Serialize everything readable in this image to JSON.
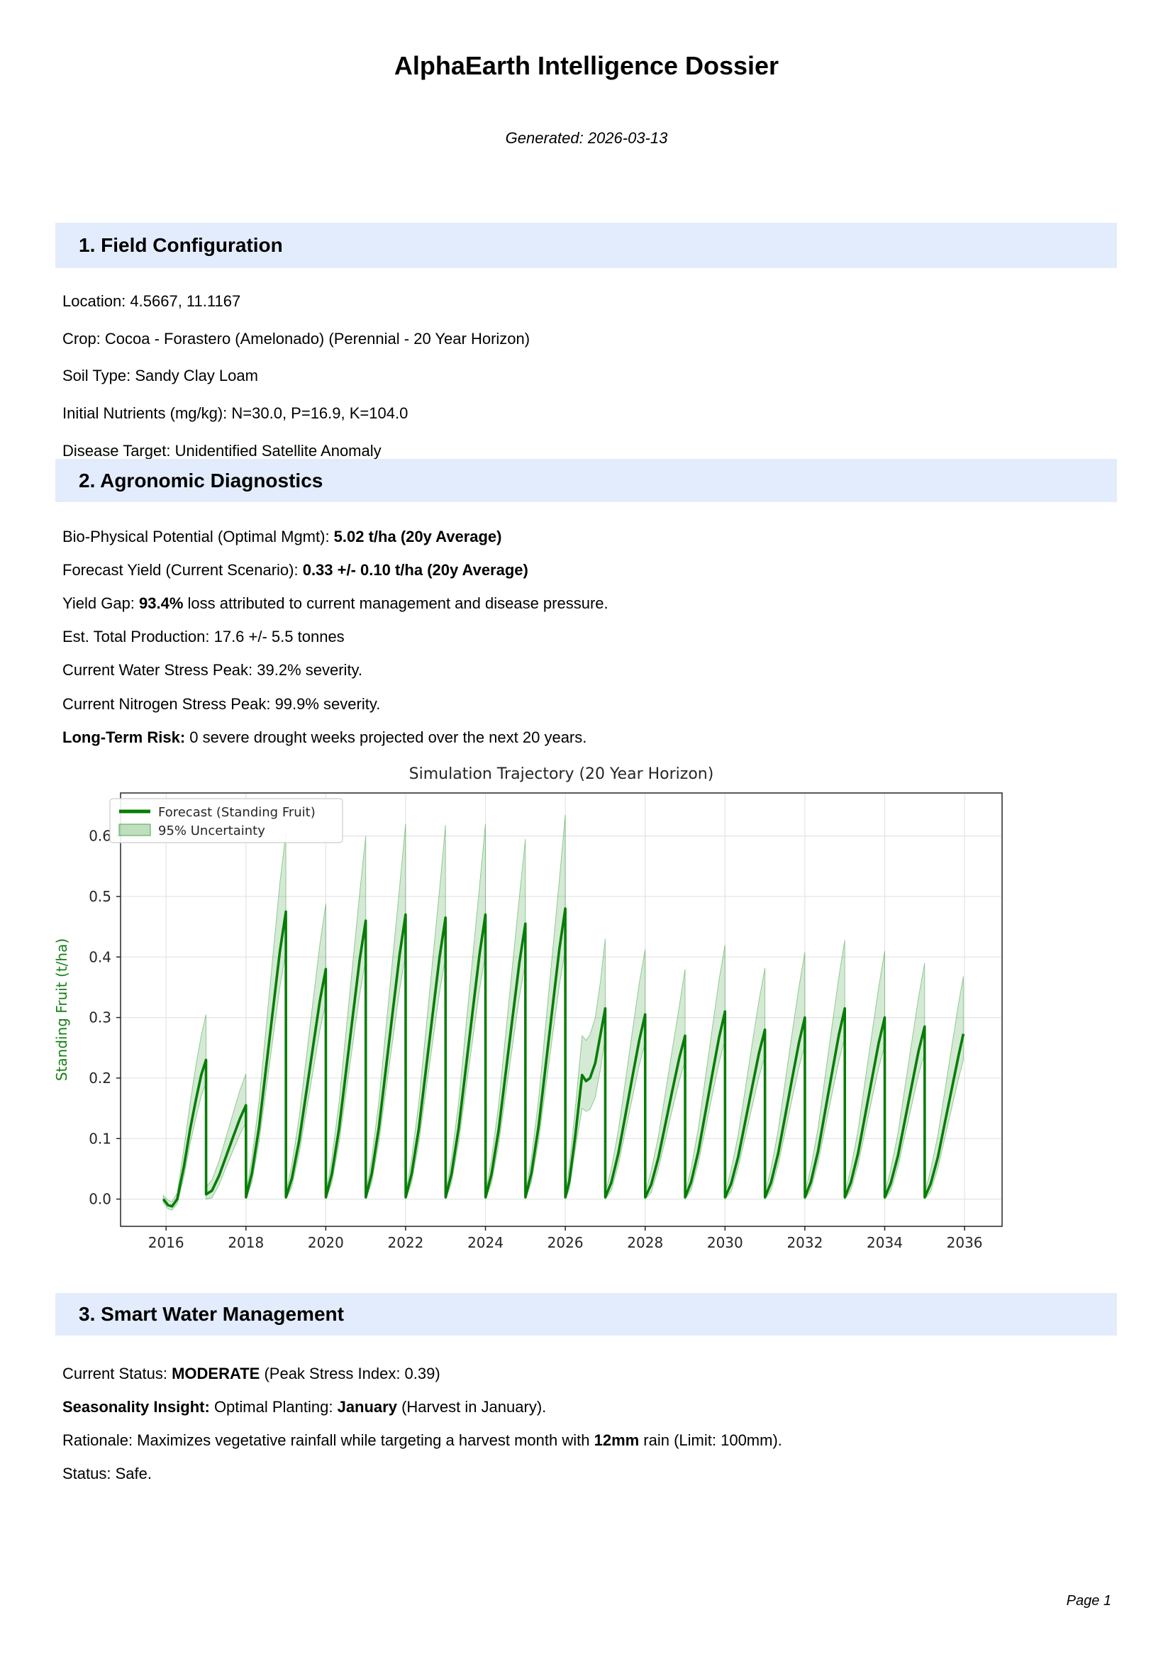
{
  "doc": {
    "title": "AlphaEarth Intelligence Dossier",
    "generated": "Generated: 2026-03-13",
    "page_footer": "Page 1"
  },
  "sections": {
    "s1": {
      "heading": "1. Field Configuration",
      "lines": [
        [
          [
            "Location: 4.5667, 11.1167",
            0
          ]
        ],
        [
          [
            "Crop: Cocoa - Forastero (Amelonado) (Perennial - 20 Year Horizon)",
            0
          ]
        ],
        [
          [
            "Soil Type: Sandy Clay Loam",
            0
          ]
        ],
        [
          [
            "Initial Nutrients (mg/kg): N=30.0, P=16.9, K=104.0",
            0
          ]
        ],
        [
          [
            "Disease Target: Unidentified Satellite Anomaly",
            0
          ]
        ]
      ]
    },
    "s2": {
      "heading": "2. Agronomic Diagnostics",
      "lines": [
        [
          [
            "Bio-Physical Potential (Optimal Mgmt): ",
            0
          ],
          [
            "5.02 t/ha (20y Average)",
            1
          ]
        ],
        [
          [
            "Forecast Yield (Current Scenario): ",
            0
          ],
          [
            "0.33 +/- 0.10 t/ha (20y Average)",
            1
          ]
        ],
        [
          [
            "Yield Gap: ",
            0
          ],
          [
            "93.4%",
            1
          ],
          [
            " loss attributed to current management and disease pressure.",
            0
          ]
        ],
        [
          [
            "Est. Total Production: 17.6 +/- 5.5 tonnes",
            0
          ]
        ],
        [
          [
            "Current Water Stress Peak: 39.2% severity.",
            0
          ]
        ],
        [
          [
            "Current Nitrogen Stress Peak: 99.9% severity.",
            0
          ]
        ],
        [
          [
            "Long-Term Risk:",
            1
          ],
          [
            " 0 severe drought weeks projected over the next 20 years.",
            0
          ]
        ]
      ]
    },
    "s3": {
      "heading": "3. Smart Water Management",
      "lines": [
        [
          [
            "Current Status: ",
            0
          ],
          [
            "MODERATE",
            1
          ],
          [
            " (Peak Stress Index: 0.39)",
            0
          ]
        ],
        [
          [
            "Seasonality Insight:",
            1
          ],
          [
            " Optimal Planting: ",
            0
          ],
          [
            "January",
            1
          ],
          [
            " (Harvest in January).",
            0
          ]
        ],
        [
          [
            "Rationale: Maximizes vegetative rainfall while targeting a harvest month with ",
            0
          ],
          [
            "12mm",
            1
          ],
          [
            " rain (Limit: 100mm).",
            0
          ]
        ],
        [
          [
            "Status: Safe.",
            0
          ]
        ]
      ]
    }
  },
  "chart_data": {
    "type": "line",
    "title": "Simulation Trajectory (20 Year Horizon)",
    "xlabel": "",
    "ylabel": "Standing Fruit (t/ha)",
    "legend": [
      "Forecast (Standing Fruit)",
      "95% Uncertainty"
    ],
    "legend_position": "upper left",
    "grid": true,
    "xlim": [
      2014.86,
      2036.94
    ],
    "ylim": [
      -0.045,
      0.671
    ],
    "xticks": [
      2016,
      2018,
      2020,
      2022,
      2024,
      2026,
      2028,
      2030,
      2032,
      2034,
      2036
    ],
    "xtick_labels": [
      "2016",
      "2018",
      "2020",
      "2022",
      "2024",
      "2026",
      "2028",
      "2030",
      "2032",
      "2034",
      "2036"
    ],
    "yticks": [
      0.0,
      0.1,
      0.2,
      0.3,
      0.4,
      0.5,
      0.6
    ],
    "ytick_labels": [
      "0.0",
      "0.1",
      "0.2",
      "0.3",
      "0.4",
      "0.5",
      "0.6"
    ],
    "colors": {
      "line": "#067d06",
      "band_fill": "#008000",
      "band_fill_opacity": 0.17,
      "band_edge": "#4ca64c",
      "axis_label": "#168016",
      "grid": "#e4e4e4",
      "axis": "#262626",
      "tick_text": "#262626"
    },
    "point_format": [
      "year",
      "forecast",
      "band_low",
      "band_high"
    ],
    "points": [
      [
        2015.93,
        0.0,
        -0.006,
        0.006
      ],
      [
        2016.05,
        -0.01,
        -0.016,
        -0.002
      ],
      [
        2016.15,
        -0.012,
        -0.018,
        -0.004
      ],
      [
        2016.28,
        0.0,
        -0.008,
        0.01
      ],
      [
        2016.45,
        0.055,
        0.038,
        0.085
      ],
      [
        2016.6,
        0.115,
        0.091,
        0.158
      ],
      [
        2016.75,
        0.165,
        0.135,
        0.222
      ],
      [
        2016.88,
        0.205,
        0.17,
        0.27
      ],
      [
        2017.0,
        0.23,
        0.192,
        0.305
      ],
      [
        2017.002,
        0.008,
        0.0,
        0.02
      ],
      [
        2017.15,
        0.014,
        0.002,
        0.032
      ],
      [
        2017.33,
        0.039,
        0.024,
        0.063
      ],
      [
        2017.5,
        0.07,
        0.052,
        0.102
      ],
      [
        2017.67,
        0.101,
        0.079,
        0.14
      ],
      [
        2017.85,
        0.133,
        0.107,
        0.18
      ],
      [
        2018.0,
        0.155,
        0.126,
        0.207
      ],
      [
        2018.002,
        0.003,
        0.0,
        0.01
      ],
      [
        2018.15,
        0.043,
        0.028,
        0.068
      ],
      [
        2018.33,
        0.119,
        0.095,
        0.162
      ],
      [
        2018.5,
        0.214,
        0.178,
        0.28
      ],
      [
        2018.67,
        0.309,
        0.262,
        0.398
      ],
      [
        2018.85,
        0.409,
        0.35,
        0.522
      ],
      [
        2019.0,
        0.475,
        0.408,
        0.605
      ],
      [
        2019.002,
        0.003,
        0.0,
        0.01
      ],
      [
        2019.15,
        0.034,
        0.02,
        0.057
      ],
      [
        2019.33,
        0.095,
        0.074,
        0.133
      ],
      [
        2019.5,
        0.171,
        0.14,
        0.227
      ],
      [
        2019.67,
        0.247,
        0.207,
        0.321
      ],
      [
        2019.85,
        0.327,
        0.278,
        0.42
      ],
      [
        2020.0,
        0.38,
        0.324,
        0.488
      ],
      [
        2020.002,
        0.003,
        0.0,
        0.01
      ],
      [
        2020.15,
        0.041,
        0.026,
        0.066
      ],
      [
        2020.33,
        0.115,
        0.091,
        0.158
      ],
      [
        2020.5,
        0.207,
        0.172,
        0.272
      ],
      [
        2020.67,
        0.299,
        0.253,
        0.386
      ],
      [
        2020.85,
        0.396,
        0.338,
        0.506
      ],
      [
        2021.0,
        0.46,
        0.395,
        0.6
      ],
      [
        2021.002,
        0.003,
        0.0,
        0.01
      ],
      [
        2021.15,
        0.042,
        0.027,
        0.067
      ],
      [
        2021.33,
        0.118,
        0.094,
        0.161
      ],
      [
        2021.5,
        0.212,
        0.177,
        0.278
      ],
      [
        2021.67,
        0.306,
        0.259,
        0.394
      ],
      [
        2021.85,
        0.404,
        0.346,
        0.516
      ],
      [
        2022.0,
        0.47,
        0.404,
        0.62
      ],
      [
        2022.002,
        0.003,
        0.0,
        0.01
      ],
      [
        2022.15,
        0.042,
        0.027,
        0.067
      ],
      [
        2022.33,
        0.116,
        0.092,
        0.159
      ],
      [
        2022.5,
        0.209,
        0.174,
        0.274
      ],
      [
        2022.67,
        0.302,
        0.256,
        0.39
      ],
      [
        2022.85,
        0.4,
        0.342,
        0.511
      ],
      [
        2023.0,
        0.465,
        0.399,
        0.618
      ],
      [
        2023.002,
        0.003,
        0.0,
        0.01
      ],
      [
        2023.15,
        0.042,
        0.027,
        0.067
      ],
      [
        2023.33,
        0.118,
        0.094,
        0.161
      ],
      [
        2023.5,
        0.212,
        0.177,
        0.278
      ],
      [
        2023.67,
        0.306,
        0.259,
        0.394
      ],
      [
        2023.85,
        0.404,
        0.346,
        0.516
      ],
      [
        2024.0,
        0.47,
        0.404,
        0.62
      ],
      [
        2024.002,
        0.003,
        0.0,
        0.01
      ],
      [
        2024.15,
        0.041,
        0.026,
        0.066
      ],
      [
        2024.33,
        0.114,
        0.09,
        0.156
      ],
      [
        2024.5,
        0.205,
        0.17,
        0.269
      ],
      [
        2024.67,
        0.296,
        0.25,
        0.382
      ],
      [
        2024.85,
        0.391,
        0.334,
        0.5
      ],
      [
        2025.0,
        0.455,
        0.39,
        0.595
      ],
      [
        2025.002,
        0.003,
        0.0,
        0.01
      ],
      [
        2025.15,
        0.043,
        0.028,
        0.068
      ],
      [
        2025.33,
        0.12,
        0.096,
        0.164
      ],
      [
        2025.5,
        0.216,
        0.18,
        0.283
      ],
      [
        2025.67,
        0.312,
        0.265,
        0.402
      ],
      [
        2025.85,
        0.413,
        0.353,
        0.527
      ],
      [
        2026.0,
        0.48,
        0.412,
        0.635
      ],
      [
        2026.002,
        0.003,
        0.0,
        0.01
      ],
      [
        2026.1,
        0.03,
        0.016,
        0.055
      ],
      [
        2026.25,
        0.105,
        0.082,
        0.15
      ],
      [
        2026.42,
        0.205,
        0.15,
        0.27
      ],
      [
        2026.52,
        0.195,
        0.145,
        0.262
      ],
      [
        2026.62,
        0.2,
        0.148,
        0.272
      ],
      [
        2026.75,
        0.225,
        0.168,
        0.3
      ],
      [
        2026.88,
        0.272,
        0.215,
        0.36
      ],
      [
        2027.0,
        0.315,
        0.267,
        0.43
      ],
      [
        2027.002,
        0.003,
        0.0,
        0.01
      ],
      [
        2027.15,
        0.027,
        0.014,
        0.05
      ],
      [
        2027.33,
        0.076,
        0.057,
        0.114
      ],
      [
        2027.5,
        0.137,
        0.111,
        0.193
      ],
      [
        2027.67,
        0.198,
        0.164,
        0.272
      ],
      [
        2027.85,
        0.262,
        0.221,
        0.356
      ],
      [
        2028.0,
        0.305,
        0.258,
        0.412
      ],
      [
        2028.002,
        0.003,
        0.0,
        0.01
      ],
      [
        2028.15,
        0.024,
        0.011,
        0.047
      ],
      [
        2028.33,
        0.068,
        0.05,
        0.103
      ],
      [
        2028.5,
        0.122,
        0.097,
        0.173
      ],
      [
        2028.67,
        0.176,
        0.145,
        0.243
      ],
      [
        2028.85,
        0.232,
        0.194,
        0.317
      ],
      [
        2029.0,
        0.27,
        0.228,
        0.38
      ],
      [
        2029.002,
        0.003,
        0.0,
        0.01
      ],
      [
        2029.15,
        0.028,
        0.015,
        0.051
      ],
      [
        2029.33,
        0.078,
        0.059,
        0.116
      ],
      [
        2029.5,
        0.14,
        0.113,
        0.197
      ],
      [
        2029.67,
        0.202,
        0.168,
        0.277
      ],
      [
        2029.85,
        0.267,
        0.225,
        0.362
      ],
      [
        2030.0,
        0.31,
        0.263,
        0.42
      ],
      [
        2030.002,
        0.003,
        0.0,
        0.01
      ],
      [
        2030.15,
        0.025,
        0.012,
        0.048
      ],
      [
        2030.33,
        0.07,
        0.052,
        0.106
      ],
      [
        2030.5,
        0.126,
        0.101,
        0.179
      ],
      [
        2030.67,
        0.182,
        0.15,
        0.252
      ],
      [
        2030.85,
        0.241,
        0.202,
        0.328
      ],
      [
        2031.0,
        0.28,
        0.236,
        0.382
      ],
      [
        2031.002,
        0.003,
        0.0,
        0.01
      ],
      [
        2031.15,
        0.027,
        0.014,
        0.05
      ],
      [
        2031.33,
        0.075,
        0.056,
        0.113
      ],
      [
        2031.5,
        0.135,
        0.109,
        0.191
      ],
      [
        2031.67,
        0.195,
        0.162,
        0.269
      ],
      [
        2031.85,
        0.258,
        0.217,
        0.35
      ],
      [
        2032.0,
        0.3,
        0.254,
        0.408
      ],
      [
        2032.002,
        0.003,
        0.0,
        0.01
      ],
      [
        2032.15,
        0.028,
        0.015,
        0.052
      ],
      [
        2032.33,
        0.079,
        0.06,
        0.117
      ],
      [
        2032.5,
        0.142,
        0.115,
        0.199
      ],
      [
        2032.67,
        0.205,
        0.17,
        0.281
      ],
      [
        2032.85,
        0.271,
        0.228,
        0.367
      ],
      [
        2033.0,
        0.315,
        0.267,
        0.428
      ],
      [
        2033.002,
        0.003,
        0.0,
        0.01
      ],
      [
        2033.15,
        0.027,
        0.014,
        0.05
      ],
      [
        2033.33,
        0.075,
        0.056,
        0.113
      ],
      [
        2033.5,
        0.135,
        0.109,
        0.191
      ],
      [
        2033.67,
        0.195,
        0.162,
        0.269
      ],
      [
        2033.85,
        0.258,
        0.217,
        0.35
      ],
      [
        2034.0,
        0.3,
        0.254,
        0.41
      ],
      [
        2034.002,
        0.003,
        0.0,
        0.01
      ],
      [
        2034.15,
        0.026,
        0.013,
        0.049
      ],
      [
        2034.33,
        0.071,
        0.053,
        0.108
      ],
      [
        2034.5,
        0.128,
        0.103,
        0.182
      ],
      [
        2034.67,
        0.185,
        0.153,
        0.256
      ],
      [
        2034.85,
        0.245,
        0.206,
        0.334
      ],
      [
        2035.0,
        0.285,
        0.241,
        0.39
      ],
      [
        2035.002,
        0.003,
        0.0,
        0.01
      ],
      [
        2035.15,
        0.025,
        0.012,
        0.048
      ],
      [
        2035.33,
        0.069,
        0.051,
        0.105
      ],
      [
        2035.5,
        0.124,
        0.099,
        0.176
      ],
      [
        2035.67,
        0.179,
        0.148,
        0.248
      ],
      [
        2035.85,
        0.237,
        0.199,
        0.323
      ],
      [
        2035.97,
        0.273,
        0.23,
        0.368
      ]
    ]
  }
}
